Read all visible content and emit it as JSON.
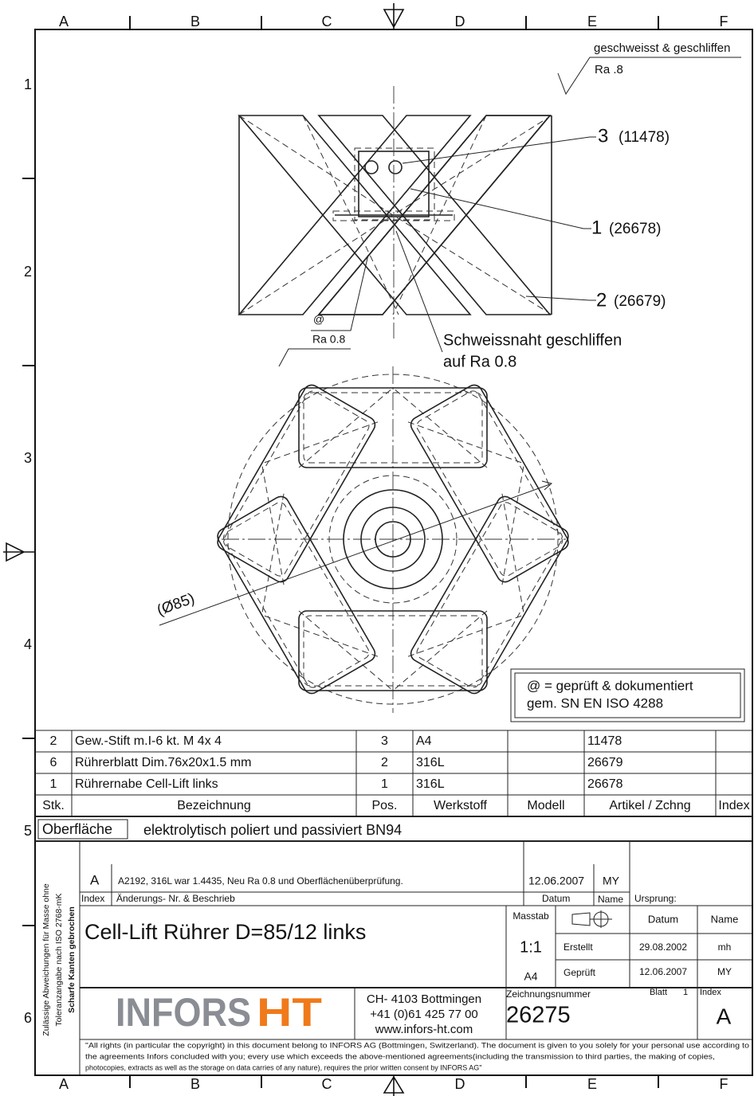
{
  "border": {
    "columns": [
      "A",
      "B",
      "C",
      "D",
      "E",
      "F"
    ],
    "rows": [
      "1",
      "2",
      "3",
      "4",
      "5",
      "6"
    ]
  },
  "surface_symbol": {
    "process": "geschweisst & geschliffen",
    "roughness": "Ra .8"
  },
  "callouts": [
    {
      "item": "3",
      "article": "(11478)"
    },
    {
      "item": "1",
      "article": "(26678)"
    },
    {
      "item": "2",
      "article": "(26679)"
    }
  ],
  "weld_symbol": {
    "mark": "@",
    "roughness": "Ra 0.8"
  },
  "weld_note": [
    "Schweissnaht geschliffen",
    "auf Ra 0.8"
  ],
  "diameter": "(Ø85)",
  "inspection_note": [
    "@ = geprüft & dokumentiert",
    "gem. SN EN ISO 4288"
  ],
  "parts_table": {
    "header": [
      "Stk.",
      "Bezeichnung",
      "Pos.",
      "Werkstoff",
      "Modell",
      "Artikel / Zchng",
      "Index"
    ],
    "rows": [
      {
        "qty": "2",
        "description": "Gew.-Stift m.I-6 kt. M 4x 4",
        "pos": "3",
        "material": "A4",
        "article": "11478"
      },
      {
        "qty": "6",
        "description": "Rührerblatt  Dim.76x20x1.5 mm",
        "pos": "2",
        "material": "316L",
        "article": "26679"
      },
      {
        "qty": "1",
        "description": "Rührernabe Cell-Lift  links",
        "pos": "1",
        "material": "316L",
        "article": "26678"
      }
    ]
  },
  "surface": {
    "label": "Oberfläche",
    "value": "elektrolytisch poliert und passiviert BN94"
  },
  "side_note": [
    "Zulässige Abweichungen für Masse ohne",
    "Toleranzangabe nach ISO 2768-mK",
    "Scharfe Kanten gebrochen"
  ],
  "revision": {
    "index": "A",
    "description": "A2192, 316L war 1.4435, Neu Ra 0.8 und Oberflächenüberprüfung.",
    "date": "12.06.2007",
    "name": "MY",
    "headers": {
      "index": "Index",
      "description": "Änderungs- Nr. & Beschrieb",
      "date": "Datum",
      "name": "Name",
      "origin": "Ursprung:"
    }
  },
  "title": "Cell-Lift Rührer D=85/12 links",
  "scale": {
    "label": "Masstab",
    "value": "1:1",
    "format": "A4"
  },
  "approvals": {
    "headers": [
      "Datum",
      "Name"
    ],
    "rows": [
      {
        "role": "Erstellt",
        "date": "29.08.2002",
        "name": "mh"
      },
      {
        "role": "Geprüft",
        "date": "12.06.2007",
        "name": "MY"
      }
    ]
  },
  "company": {
    "logo": "INFORS",
    "logo_accent": "HT",
    "address": [
      "CH- 4103 Bottmingen",
      "+41 (0)61 425 77 00",
      "www.infors-ht.com"
    ]
  },
  "drawing_number": {
    "label": "Zeichnungsnummer",
    "value": "26275"
  },
  "sheet": {
    "label": "Blatt",
    "value": "1"
  },
  "index": {
    "label": "Index",
    "value": "A"
  },
  "copyright": [
    "\"All rights (in particular the copyright) in this document belong to INFORS AG (Bottmingen, Switzerland). The document is given to you solely for your personal use according to",
    "the agreements Infors concluded with you; every use which exceeds the above-mentioned agreements(including the transmission to third parties, the making of copies,",
    "photocopies, extracts as well as the storage on data carries of any  nature), requires the prior written consent by INFORS AG\""
  ]
}
